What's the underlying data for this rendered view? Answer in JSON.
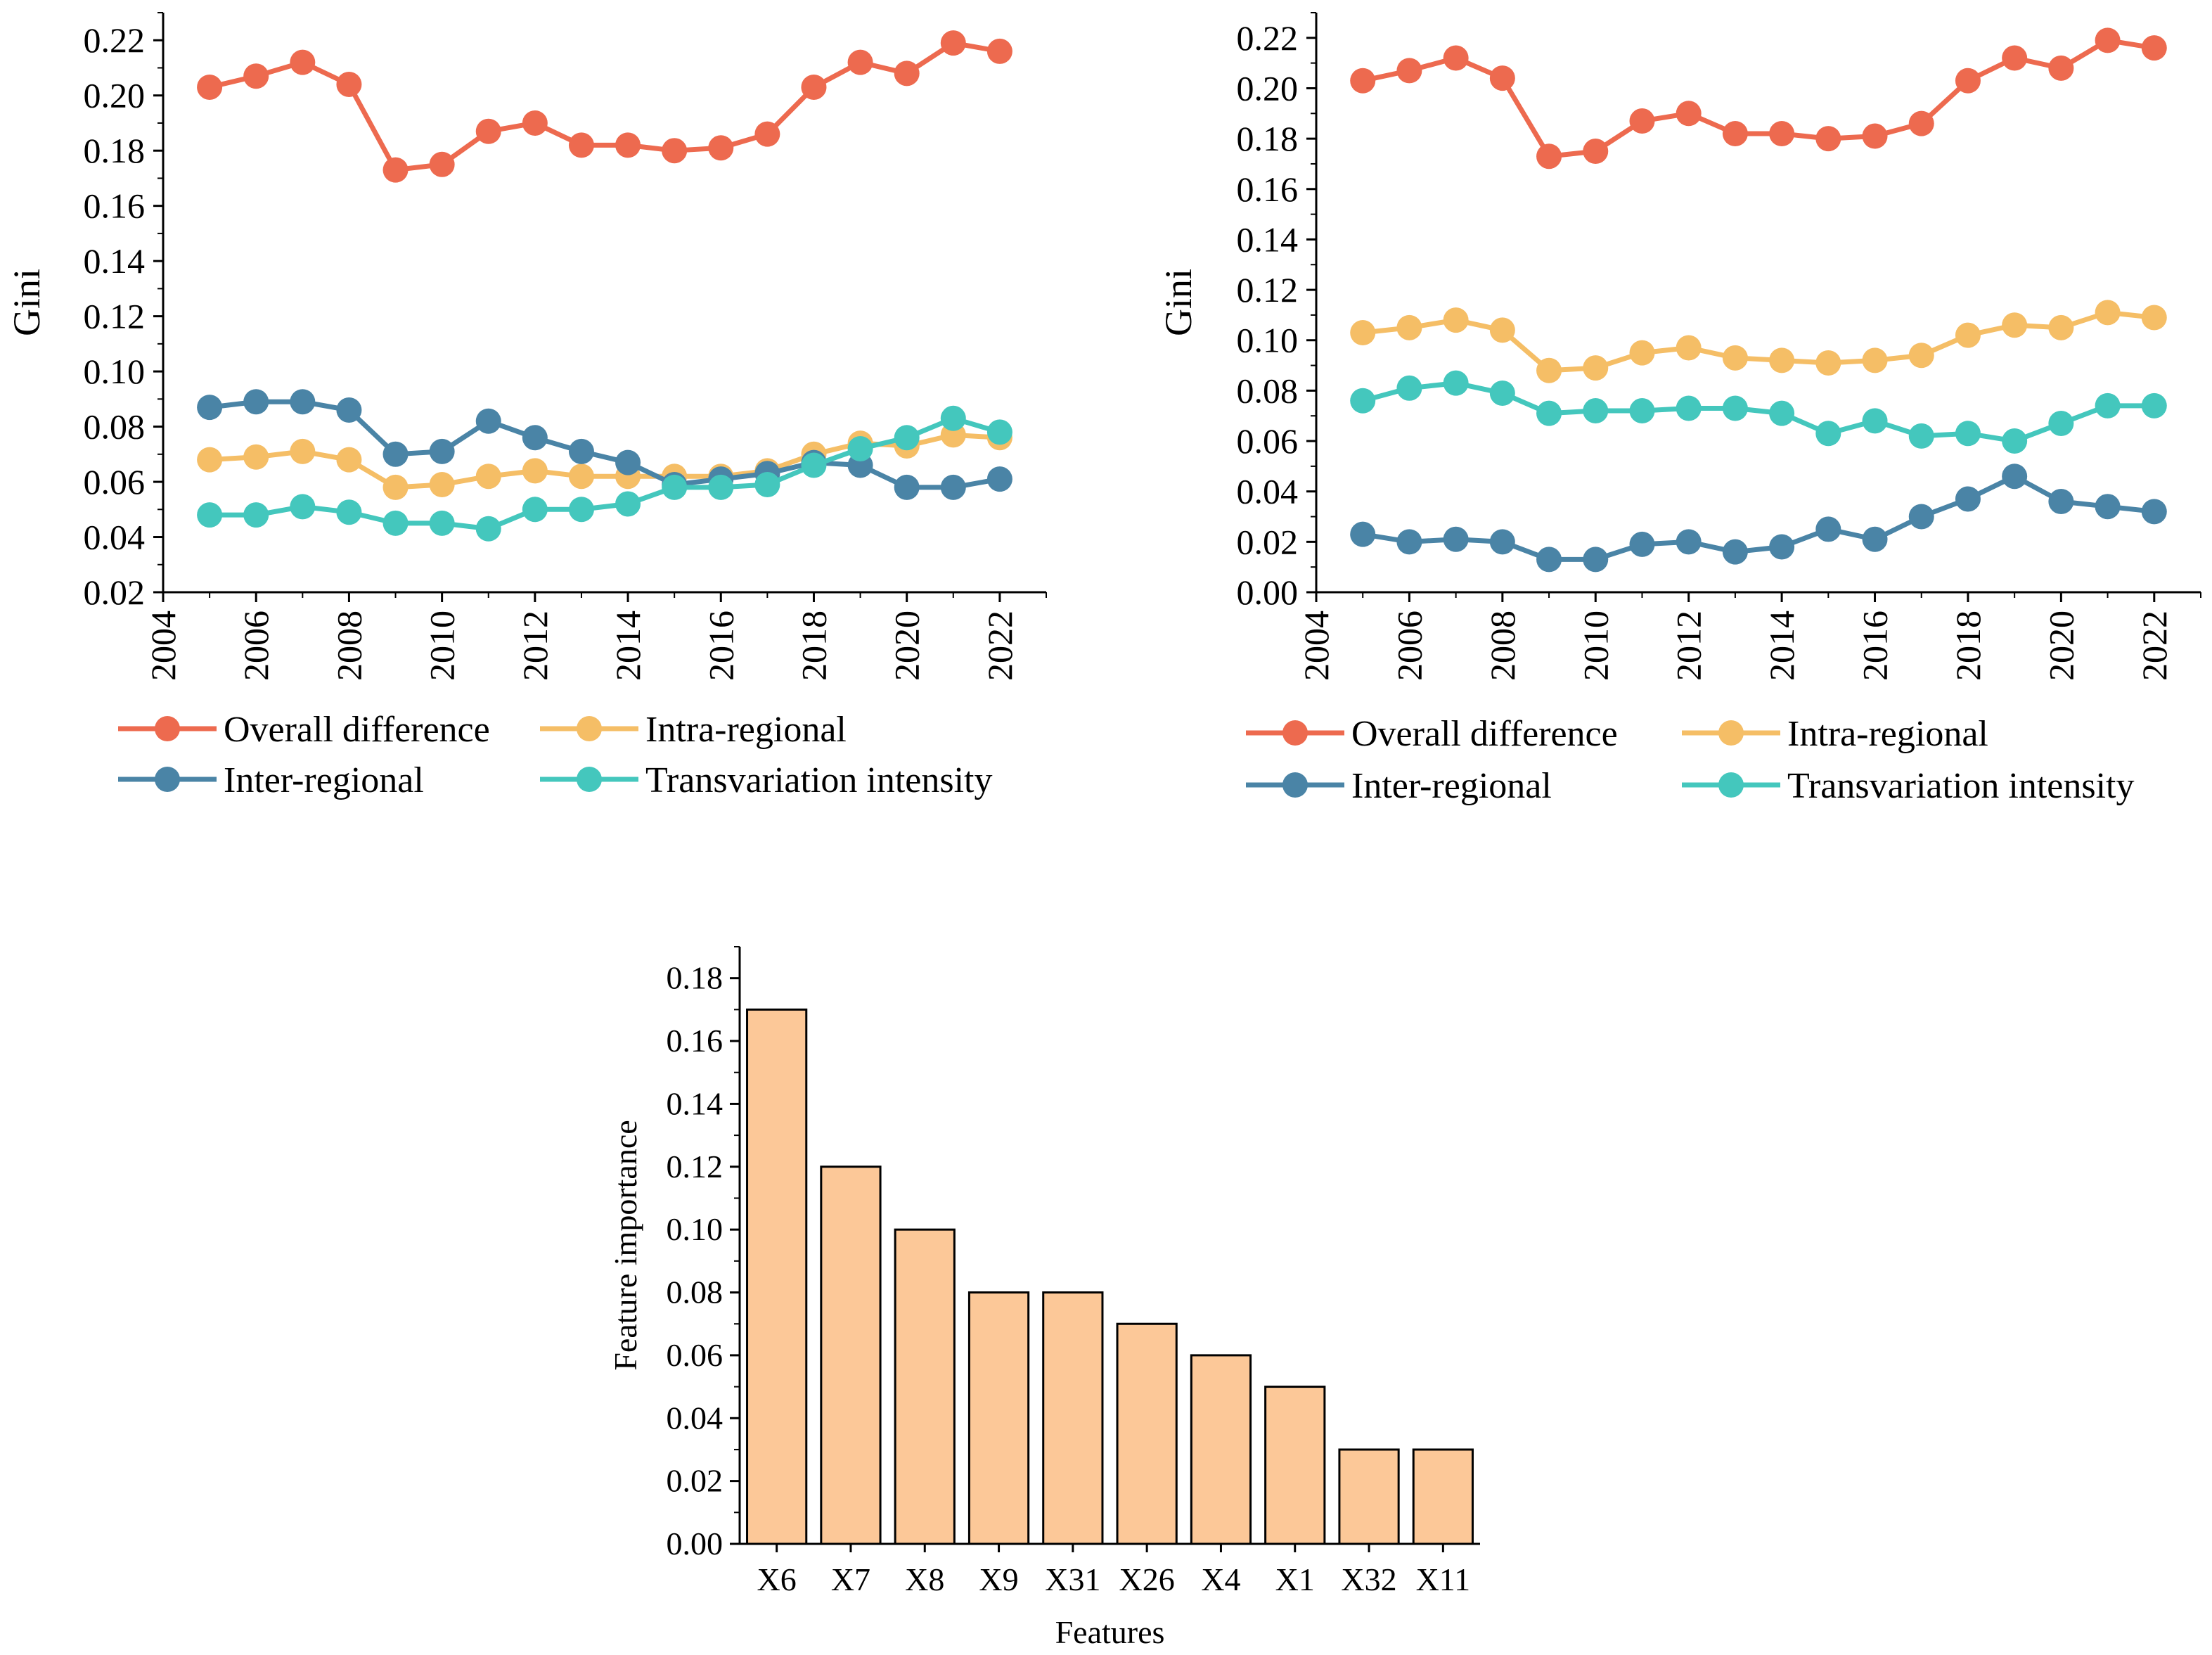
{
  "colors": {
    "overall": "#ED6A4F",
    "intra": "#F5BE66",
    "inter": "#4A84A6",
    "transvariation": "#44C7BD",
    "bar_fill": "#FCC898",
    "bar_stroke": "#000000"
  },
  "chart_data": [
    {
      "type": "line",
      "title": "",
      "xlabel": "",
      "ylabel": "Gini",
      "xlim": [
        2004,
        2023
      ],
      "ylim": [
        0.02,
        0.23
      ],
      "xticks": [
        "2004",
        "2006",
        "2008",
        "2010",
        "2012",
        "2014",
        "2016",
        "2018",
        "2020",
        "2022"
      ],
      "yticks": [
        "0.02",
        "0.04",
        "0.06",
        "0.08",
        "0.10",
        "0.12",
        "0.14",
        "0.16",
        "0.18",
        "0.20",
        "0.22"
      ],
      "x": [
        2005,
        2006,
        2007,
        2008,
        2009,
        2010,
        2011,
        2012,
        2013,
        2014,
        2015,
        2016,
        2017,
        2018,
        2019,
        2020,
        2021,
        2022
      ],
      "series": [
        {
          "key": "overall",
          "name": "Overall difference",
          "values": [
            0.203,
            0.207,
            0.212,
            0.204,
            0.173,
            0.175,
            0.187,
            0.19,
            0.182,
            0.182,
            0.18,
            0.181,
            0.186,
            0.203,
            0.212,
            0.208,
            0.219,
            0.216
          ]
        },
        {
          "key": "intra",
          "name": "Intra-regional",
          "values": [
            0.068,
            0.069,
            0.071,
            0.068,
            0.058,
            0.059,
            0.062,
            0.064,
            0.062,
            0.062,
            0.062,
            0.062,
            0.064,
            0.07,
            0.074,
            0.073,
            0.077,
            0.076
          ]
        },
        {
          "key": "inter",
          "name": "Inter-regional",
          "values": [
            0.087,
            0.089,
            0.089,
            0.086,
            0.07,
            0.071,
            0.082,
            0.076,
            0.071,
            0.067,
            0.059,
            0.061,
            0.063,
            0.067,
            0.066,
            0.058,
            0.058,
            0.061
          ]
        },
        {
          "key": "transvariation",
          "name": "Transvariation intensity",
          "values": [
            0.048,
            0.048,
            0.051,
            0.049,
            0.045,
            0.045,
            0.043,
            0.05,
            0.05,
            0.052,
            0.058,
            0.058,
            0.059,
            0.066,
            0.072,
            0.076,
            0.083,
            0.078
          ]
        }
      ]
    },
    {
      "type": "line",
      "title": "",
      "xlabel": "",
      "ylabel": "Gini",
      "xlim": [
        2004,
        2023
      ],
      "ylim": [
        0.0,
        0.23
      ],
      "xticks": [
        "2004",
        "2006",
        "2008",
        "2010",
        "2012",
        "2014",
        "2016",
        "2018",
        "2020",
        "2022"
      ],
      "yticks": [
        "0.00",
        "0.02",
        "0.04",
        "0.06",
        "0.08",
        "0.10",
        "0.12",
        "0.14",
        "0.16",
        "0.18",
        "0.20",
        "0.22"
      ],
      "x": [
        2005,
        2006,
        2007,
        2008,
        2009,
        2010,
        2011,
        2012,
        2013,
        2014,
        2015,
        2016,
        2017,
        2018,
        2019,
        2020,
        2021,
        2022
      ],
      "series": [
        {
          "key": "overall",
          "name": "Overall difference",
          "values": [
            0.203,
            0.207,
            0.212,
            0.204,
            0.173,
            0.175,
            0.187,
            0.19,
            0.182,
            0.182,
            0.18,
            0.181,
            0.186,
            0.203,
            0.212,
            0.208,
            0.219,
            0.216
          ]
        },
        {
          "key": "intra",
          "name": "Intra-regional",
          "values": [
            0.103,
            0.105,
            0.108,
            0.104,
            0.088,
            0.089,
            0.095,
            0.097,
            0.093,
            0.092,
            0.091,
            0.092,
            0.094,
            0.102,
            0.106,
            0.105,
            0.111,
            0.109
          ]
        },
        {
          "key": "inter",
          "name": "Inter-regional",
          "values": [
            0.023,
            0.02,
            0.021,
            0.02,
            0.013,
            0.013,
            0.019,
            0.02,
            0.016,
            0.018,
            0.025,
            0.021,
            0.03,
            0.037,
            0.046,
            0.036,
            0.034,
            0.032
          ]
        },
        {
          "key": "transvariation",
          "name": "Transvariation intensity",
          "values": [
            0.076,
            0.081,
            0.083,
            0.079,
            0.071,
            0.072,
            0.072,
            0.073,
            0.073,
            0.071,
            0.063,
            0.068,
            0.062,
            0.063,
            0.06,
            0.067,
            0.074,
            0.074
          ]
        }
      ]
    },
    {
      "type": "bar",
      "title": "",
      "xlabel": "Features",
      "ylabel": "Feature importance",
      "ylim": [
        0.0,
        0.19
      ],
      "yticks": [
        "0.00",
        "0.02",
        "0.04",
        "0.06",
        "0.08",
        "0.10",
        "0.12",
        "0.14",
        "0.16",
        "0.18"
      ],
      "categories": [
        "X6",
        "X7",
        "X8",
        "X9",
        "X31",
        "X26",
        "X4",
        "X1",
        "X32",
        "X11"
      ],
      "values": [
        0.17,
        0.12,
        0.1,
        0.08,
        0.08,
        0.07,
        0.06,
        0.05,
        0.03,
        0.03
      ]
    }
  ]
}
